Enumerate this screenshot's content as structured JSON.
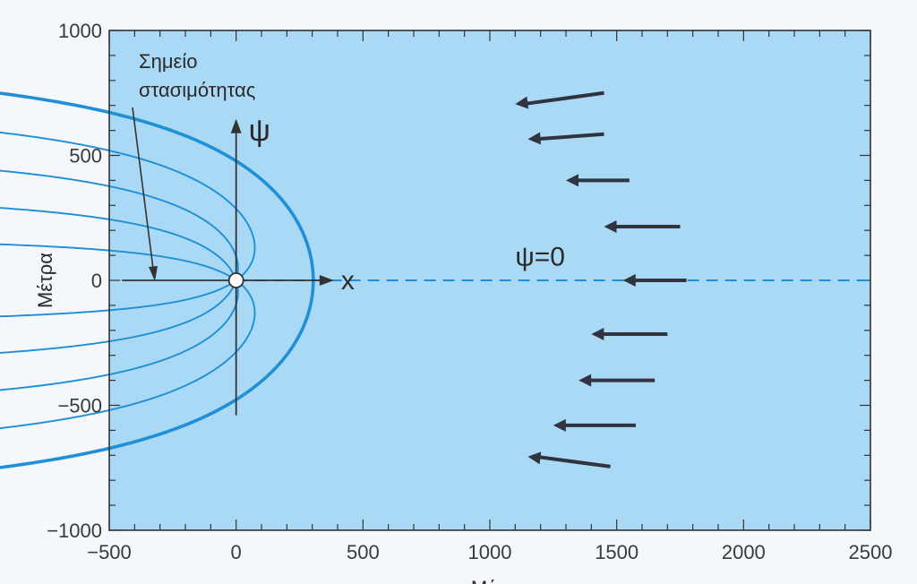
{
  "chart_data": {
    "type": "line",
    "title": "",
    "xlabel": "Μέ",
    "ylabel": "Μέτρα",
    "xlim": [
      -500,
      2500
    ],
    "ylim": [
      -1000,
      1000
    ],
    "xticks": [
      -500,
      0,
      500,
      1000,
      1500,
      2000,
      2500
    ],
    "yticks": [
      -1000,
      -500,
      0,
      500,
      1000
    ],
    "x_tick_labels": [
      "−500",
      "0",
      "500",
      "1000",
      "1500",
      "2000",
      "2500"
    ],
    "y_tick_labels": [
      "−1000",
      "−500",
      "0",
      "500",
      "1000"
    ],
    "grid": false,
    "colors": {
      "plot_bg": "#a9d9f5",
      "curve": "#1f8fd6",
      "arrow": "#2f3440",
      "axis": "#333333"
    },
    "stagnation_point": {
      "x": 0,
      "y": 0
    },
    "series": [
      {
        "style": "solid",
        "psi_fraction": 1,
        "x_end": 2500
      },
      {
        "style": "dashed",
        "psi_fraction": 0.8,
        "x_end": 2500
      },
      {
        "style": "dashed",
        "psi_fraction": 0.6,
        "x_end": 2500
      },
      {
        "style": "dashed",
        "psi_fraction": 0.4,
        "x_end": 2500
      },
      {
        "style": "dashed",
        "psi_fraction": 0.2,
        "x_end": 2500
      },
      {
        "style": "dashed",
        "psi_fraction": 0,
        "x_end": 2500
      },
      {
        "style": "dashed",
        "psi_fraction": -0.2,
        "x_end": 2500
      },
      {
        "style": "dashed",
        "psi_fraction": -0.4,
        "x_end": 2500
      },
      {
        "style": "dashed",
        "psi_fraction": -0.6,
        "x_end": 2500
      },
      {
        "style": "dashed",
        "psi_fraction": -0.8,
        "x_end": 2500
      },
      {
        "style": "solid",
        "psi_fraction": -1,
        "x_end": 2500
      }
    ],
    "flow_arrows": [
      {
        "x_from": 1450,
        "x_to": 1100,
        "y_from": 750,
        "y_to": 705
      },
      {
        "x_from": 1450,
        "x_to": 1150,
        "y_from": 585,
        "y_to": 565
      },
      {
        "x_from": 1550,
        "x_to": 1300,
        "y_from": 400,
        "y_to": 400
      },
      {
        "x_from": 1750,
        "x_to": 1450,
        "y_from": 215,
        "y_to": 215
      },
      {
        "x_from": 1775,
        "x_to": 1525,
        "y_from": 0,
        "y_to": 0
      },
      {
        "x_from": 1700,
        "x_to": 1400,
        "y_from": -215,
        "y_to": -215
      },
      {
        "x_from": 1650,
        "x_to": 1350,
        "y_from": -400,
        "y_to": -400
      },
      {
        "x_from": 1575,
        "x_to": 1250,
        "y_from": -580,
        "y_to": -580
      },
      {
        "x_from": 1475,
        "x_to": 1150,
        "y_from": -745,
        "y_to": -705
      }
    ],
    "annotations": {
      "stagnation_line1": "Σημείο",
      "stagnation_line2": "στασιμότητας",
      "psi_axis": "ψ",
      "x_axis": "x",
      "psi_zero": "ψ=0"
    }
  }
}
